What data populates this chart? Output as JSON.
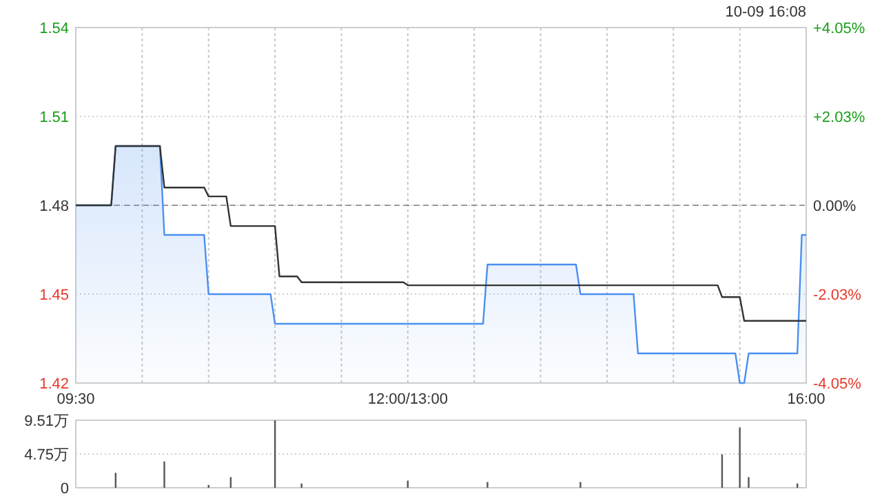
{
  "chart_data": [
    {
      "type": "line",
      "annotations": [
        "10-09 16:08"
      ],
      "categories": [
        "09:30",
        null,
        null,
        null,
        null,
        null,
        null,
        null,
        null,
        null,
        null,
        null,
        null,
        null,
        null,
        null,
        null,
        null,
        null,
        null,
        null,
        null,
        null,
        null,
        null,
        null,
        null,
        null,
        null,
        null,
        null,
        null,
        null,
        null,
        null,
        null,
        null,
        null,
        null,
        null,
        null,
        null,
        null,
        null,
        null,
        null,
        null,
        null,
        null,
        null,
        null,
        null,
        null,
        null,
        null,
        null,
        null,
        null,
        null,
        null,
        null,
        null,
        null,
        null,
        null,
        null,
        null,
        null,
        null,
        null,
        null,
        null,
        null,
        null,
        null,
        "12:00/13:00",
        null,
        null,
        null,
        null,
        null,
        null,
        null,
        null,
        null,
        null,
        null,
        null,
        null,
        null,
        null,
        null,
        null,
        null,
        null,
        null,
        null,
        null,
        null,
        null,
        null,
        null,
        null,
        null,
        null,
        null,
        null,
        null,
        null,
        null,
        null,
        null,
        null,
        null,
        null,
        null,
        null,
        null,
        null,
        null,
        null,
        null,
        null,
        null,
        null,
        null,
        null,
        null,
        null,
        null,
        null,
        null,
        null,
        null,
        null,
        null,
        null,
        null,
        null,
        null,
        null,
        null,
        null,
        null,
        null,
        null,
        null,
        null,
        null,
        null,
        null,
        null,
        null,
        null,
        null,
        null,
        null,
        null,
        null,
        null,
        null,
        null,
        null,
        null,
        null,
        "16:00"
      ],
      "ylim": [
        1.42,
        1.54
      ],
      "yticks": [
        1.42,
        1.45,
        1.48,
        1.51,
        1.54
      ],
      "y2lim": [
        -4.05,
        4.05
      ],
      "y2ticks": [
        {
          "value": -4.05,
          "label": "-4.05%"
        },
        {
          "value": -2.03,
          "label": "-2.03%"
        },
        {
          "value": 0,
          "label": "0.00%"
        },
        {
          "value": 2.03,
          "label": "+2.03%"
        },
        {
          "value": 4.05,
          "label": "+4.05%"
        }
      ],
      "grid": true,
      "ref_lines": [
        {
          "axis": "y",
          "value": 1.48,
          "line_style": "dashed"
        }
      ],
      "series": [
        {
          "type": "area",
          "color": "#4a8ff0",
          "values": [
            1.48,
            1.48,
            1.48,
            1.48,
            1.48,
            1.48,
            1.48,
            1.48,
            1.48,
            1.5,
            1.5,
            1.5,
            1.5,
            1.5,
            1.5,
            1.5,
            1.5,
            1.5,
            1.5,
            1.5,
            1.47,
            1.47,
            1.47,
            1.47,
            1.47,
            1.47,
            1.47,
            1.47,
            1.47,
            1.47,
            1.45,
            1.45,
            1.45,
            1.45,
            1.45,
            1.45,
            1.45,
            1.45,
            1.45,
            1.45,
            1.45,
            1.45,
            1.45,
            1.45,
            1.45,
            1.44,
            1.44,
            1.44,
            1.44,
            1.44,
            1.44,
            1.44,
            1.44,
            1.44,
            1.44,
            1.44,
            1.44,
            1.44,
            1.44,
            1.44,
            1.44,
            1.44,
            1.44,
            1.44,
            1.44,
            1.44,
            1.44,
            1.44,
            1.44,
            1.44,
            1.44,
            1.44,
            1.44,
            1.44,
            1.44,
            1.44,
            1.44,
            1.44,
            1.44,
            1.44,
            1.44,
            1.44,
            1.44,
            1.44,
            1.44,
            1.44,
            1.44,
            1.44,
            1.44,
            1.44,
            1.44,
            1.44,
            1.44,
            1.46,
            1.46,
            1.46,
            1.46,
            1.46,
            1.46,
            1.46,
            1.46,
            1.46,
            1.46,
            1.46,
            1.46,
            1.46,
            1.46,
            1.46,
            1.46,
            1.46,
            1.46,
            1.46,
            1.46,
            1.46,
            1.45,
            1.45,
            1.45,
            1.45,
            1.45,
            1.45,
            1.45,
            1.45,
            1.45,
            1.45,
            1.45,
            1.45,
            1.45,
            1.43,
            1.43,
            1.43,
            1.43,
            1.43,
            1.43,
            1.43,
            1.43,
            1.43,
            1.43,
            1.43,
            1.43,
            1.43,
            1.43,
            1.43,
            1.43,
            1.43,
            1.43,
            1.43,
            1.43,
            1.43,
            1.43,
            1.43,
            1.42,
            1.42,
            1.43,
            1.43,
            1.43,
            1.43,
            1.43,
            1.43,
            1.43,
            1.43,
            1.43,
            1.43,
            1.43,
            1.43,
            1.47,
            1.47
          ]
        },
        {
          "type": "line",
          "color": "#333333",
          "values": [
            1.48,
            1.48,
            1.48,
            1.48,
            1.48,
            1.48,
            1.48,
            1.48,
            1.48,
            1.5,
            1.5,
            1.5,
            1.5,
            1.5,
            1.5,
            1.5,
            1.5,
            1.5,
            1.5,
            1.5,
            1.486,
            1.486,
            1.486,
            1.486,
            1.486,
            1.486,
            1.486,
            1.486,
            1.486,
            1.486,
            1.483,
            1.483,
            1.483,
            1.483,
            1.483,
            1.473,
            1.473,
            1.473,
            1.473,
            1.473,
            1.473,
            1.473,
            1.473,
            1.473,
            1.473,
            1.473,
            1.456,
            1.456,
            1.456,
            1.456,
            1.456,
            1.454,
            1.454,
            1.454,
            1.454,
            1.454,
            1.454,
            1.454,
            1.454,
            1.454,
            1.454,
            1.454,
            1.454,
            1.454,
            1.454,
            1.454,
            1.454,
            1.454,
            1.454,
            1.454,
            1.454,
            1.454,
            1.454,
            1.454,
            1.454,
            1.453,
            1.453,
            1.453,
            1.453,
            1.453,
            1.453,
            1.453,
            1.453,
            1.453,
            1.453,
            1.453,
            1.453,
            1.453,
            1.453,
            1.453,
            1.453,
            1.453,
            1.453,
            1.453,
            1.453,
            1.453,
            1.453,
            1.453,
            1.453,
            1.453,
            1.453,
            1.453,
            1.453,
            1.453,
            1.453,
            1.453,
            1.453,
            1.453,
            1.453,
            1.453,
            1.453,
            1.453,
            1.453,
            1.453,
            1.453,
            1.453,
            1.453,
            1.453,
            1.453,
            1.453,
            1.453,
            1.453,
            1.453,
            1.453,
            1.453,
            1.453,
            1.453,
            1.453,
            1.453,
            1.453,
            1.453,
            1.453,
            1.453,
            1.453,
            1.453,
            1.453,
            1.453,
            1.453,
            1.453,
            1.453,
            1.453,
            1.453,
            1.453,
            1.453,
            1.453,
            1.453,
            1.449,
            1.449,
            1.449,
            1.449,
            1.449,
            1.441,
            1.441,
            1.441,
            1.441,
            1.441,
            1.441,
            1.441,
            1.441,
            1.441,
            1.441,
            1.441,
            1.441,
            1.441,
            1.441,
            1.441
          ]
        }
      ]
    },
    {
      "type": "bar",
      "categories": [
        null,
        null,
        null,
        null,
        null,
        null,
        null,
        null,
        null,
        null,
        null,
        null,
        null,
        null,
        null,
        null,
        null,
        null,
        null,
        null,
        null,
        null,
        null,
        null,
        null,
        null,
        null,
        null,
        null,
        null,
        null,
        null,
        null,
        null,
        null,
        null,
        null,
        null,
        null,
        null,
        null,
        null,
        null,
        null,
        null,
        null,
        null,
        null,
        null,
        null,
        null,
        null,
        null,
        null,
        null,
        null,
        null,
        null,
        null,
        null,
        null,
        null,
        null,
        null,
        null,
        null,
        null,
        null,
        null,
        null,
        null,
        null,
        null,
        null,
        null,
        null,
        null,
        null,
        null,
        null,
        null,
        null,
        null,
        null,
        null,
        null,
        null,
        null,
        null,
        null,
        null,
        null,
        null,
        null,
        null,
        null,
        null,
        null,
        null,
        null,
        null,
        null,
        null,
        null,
        null,
        null,
        null,
        null,
        null,
        null,
        null,
        null,
        null,
        null,
        null,
        null,
        null,
        null,
        null,
        null,
        null,
        null,
        null,
        null,
        null,
        null,
        null,
        null,
        null,
        null,
        null,
        null,
        null,
        null,
        null,
        null,
        null,
        null,
        null,
        null,
        null,
        null,
        null,
        null,
        null,
        null,
        null,
        null,
        null,
        null,
        null,
        null,
        null,
        null,
        null,
        null,
        null,
        null,
        null,
        null,
        null,
        null,
        null,
        null,
        null,
        null
      ],
      "ylim": [
        0,
        9.51
      ],
      "yticks": [
        0,
        {
          "value": 4.75,
          "label": "4.75万"
        },
        {
          "value": 9.51,
          "label": "9.51万"
        }
      ],
      "grid": "y",
      "color": "#555555",
      "values": [
        null,
        null,
        null,
        null,
        null,
        null,
        null,
        null,
        null,
        2.1,
        null,
        null,
        null,
        null,
        null,
        null,
        null,
        null,
        null,
        null,
        3.7,
        null,
        null,
        null,
        null,
        null,
        null,
        null,
        null,
        null,
        0.4,
        null,
        null,
        null,
        null,
        1.5,
        null,
        null,
        null,
        null,
        null,
        null,
        null,
        null,
        null,
        9.5,
        null,
        null,
        null,
        null,
        null,
        0.6,
        null,
        null,
        null,
        null,
        null,
        null,
        null,
        null,
        null,
        null,
        null,
        null,
        null,
        null,
        null,
        null,
        null,
        null,
        null,
        null,
        null,
        null,
        null,
        1.0,
        null,
        null,
        null,
        null,
        null,
        null,
        null,
        null,
        null,
        null,
        null,
        null,
        null,
        null,
        null,
        null,
        null,
        0.8,
        null,
        null,
        null,
        null,
        null,
        null,
        null,
        null,
        null,
        null,
        null,
        null,
        null,
        null,
        null,
        null,
        null,
        null,
        null,
        null,
        0.8,
        null,
        null,
        null,
        null,
        null,
        null,
        null,
        null,
        null,
        null,
        null,
        null,
        null,
        null,
        null,
        null,
        null,
        null,
        null,
        null,
        null,
        null,
        null,
        null,
        null,
        null,
        null,
        null,
        null,
        null,
        null,
        4.7,
        null,
        null,
        null,
        8.5,
        null,
        1.5,
        null,
        null,
        null,
        null,
        null,
        null,
        null,
        null,
        null,
        null,
        0.6,
        null,
        null
      ]
    }
  ]
}
